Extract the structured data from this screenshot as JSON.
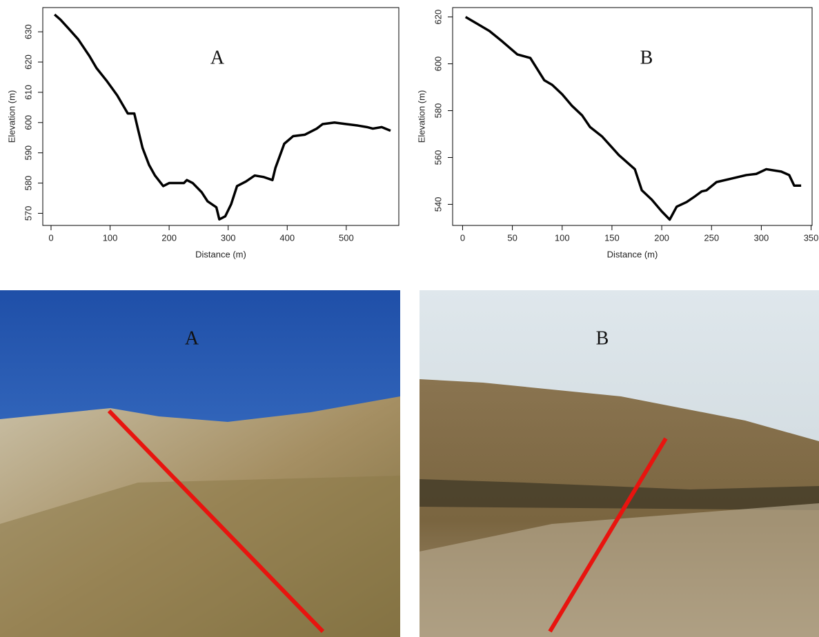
{
  "chart_data": [
    {
      "type": "line",
      "annotation": "A",
      "xlabel": "Distance (m)",
      "ylabel": "Elevation (m)",
      "x": [
        6,
        16,
        30,
        46,
        65,
        77,
        95,
        112,
        127,
        130,
        141,
        147,
        155,
        166,
        176,
        190,
        200,
        215,
        225,
        230,
        240,
        255,
        265,
        280,
        285,
        295,
        305,
        315,
        330,
        345,
        360,
        375,
        380,
        395,
        410,
        430,
        450,
        460,
        480,
        500,
        520,
        535,
        545,
        560,
        575
      ],
      "series": [
        {
          "color": "#000000",
          "values": [
            635.7,
            634,
            631,
            627.5,
            622,
            618,
            613.6,
            609,
            604,
            603,
            603,
            598,
            591.6,
            586,
            582.5,
            579,
            580,
            580,
            580,
            581,
            580,
            577,
            574,
            572,
            568,
            569,
            573,
            579,
            580.5,
            582.5,
            582,
            581,
            585,
            593,
            595.5,
            596,
            598,
            599.5,
            600,
            599.5,
            599,
            598.5,
            598,
            598.5,
            597.3
          ]
        }
      ],
      "xlim": [
        -14,
        589
      ],
      "ylim": [
        566,
        638
      ],
      "xticks": [
        0,
        100,
        200,
        300,
        400,
        500
      ],
      "yticks": [
        570,
        580,
        590,
        600,
        610,
        620,
        630
      ]
    },
    {
      "type": "line",
      "annotation": "B",
      "xlabel": "Distance (m)",
      "ylabel": "Elevation (m)",
      "x": [
        3,
        15,
        27,
        40,
        55,
        68,
        82,
        90,
        100,
        110,
        120,
        128,
        140,
        157,
        173,
        180,
        190,
        200,
        208,
        215,
        225,
        232,
        240,
        245,
        255,
        270,
        285,
        295,
        305,
        320,
        328,
        333,
        340
      ],
      "series": [
        {
          "color": "#000000",
          "values": [
            620,
            617,
            614,
            609.5,
            604,
            602.5,
            593,
            591,
            587,
            582,
            578,
            573,
            569,
            561,
            555,
            546,
            542,
            537,
            533.5,
            539,
            541,
            543,
            545.5,
            546,
            549.5,
            551,
            552.5,
            553,
            555,
            554,
            552.5,
            548,
            548
          ]
        }
      ],
      "xlim": [
        -10,
        351
      ],
      "ylim": [
        531,
        624
      ],
      "xticks": [
        0,
        50,
        100,
        150,
        200,
        250,
        300,
        350
      ],
      "yticks": [
        540,
        560,
        580,
        600,
        620
      ]
    }
  ],
  "photos": [
    {
      "label": "A"
    },
    {
      "label": "B"
    }
  ]
}
